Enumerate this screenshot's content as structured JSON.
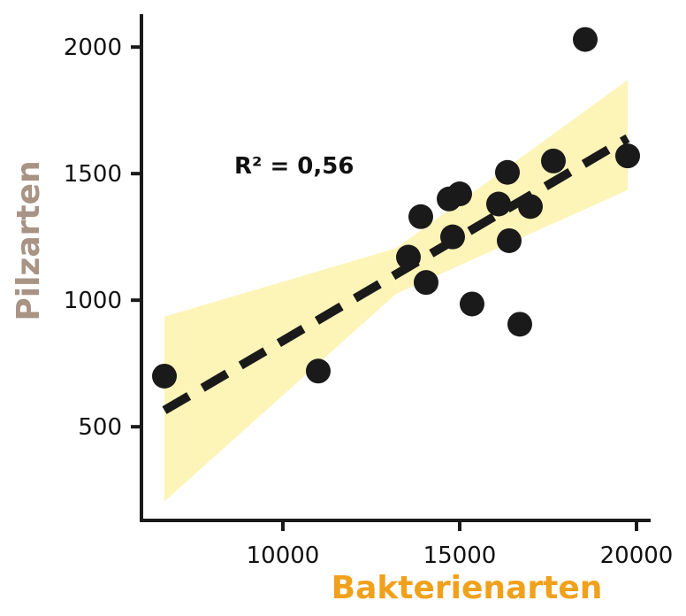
{
  "chart_data": {
    "type": "scatter",
    "title": "",
    "xlabel": "Bakterienarten",
    "ylabel": "Pilzarten",
    "xlim": [
      6000,
      20400
    ],
    "ylim": [
      130,
      2130
    ],
    "x_ticks": [
      10000,
      15000,
      20000
    ],
    "y_ticks": [
      500,
      1000,
      1500,
      2000
    ],
    "x_tick_labels": [
      "10000",
      "15000",
      "20000"
    ],
    "y_tick_labels": [
      "500",
      "1000",
      "1500",
      "2000"
    ],
    "annotation": "R² = 0,56",
    "points": [
      {
        "x": 6650,
        "y": 700
      },
      {
        "x": 11000,
        "y": 720
      },
      {
        "x": 13550,
        "y": 1170
      },
      {
        "x": 13900,
        "y": 1330
      },
      {
        "x": 14050,
        "y": 1070
      },
      {
        "x": 14700,
        "y": 1400
      },
      {
        "x": 14800,
        "y": 1250
      },
      {
        "x": 15000,
        "y": 1420
      },
      {
        "x": 15350,
        "y": 985
      },
      {
        "x": 16100,
        "y": 1380
      },
      {
        "x": 16350,
        "y": 1505
      },
      {
        "x": 16400,
        "y": 1235
      },
      {
        "x": 16700,
        "y": 905
      },
      {
        "x": 17000,
        "y": 1370
      },
      {
        "x": 17650,
        "y": 1550
      },
      {
        "x": 18550,
        "y": 2030
      },
      {
        "x": 19750,
        "y": 1570
      }
    ],
    "trendline": {
      "x": [
        6650,
        19750
      ],
      "y": [
        565,
        1640
      ],
      "style": "dashed"
    },
    "confidence_band": {
      "x": [
        6650,
        13200,
        19750
      ],
      "lower": [
        205,
        1025,
        1435
      ],
      "upper": [
        935,
        1205,
        1870
      ]
    },
    "colors": {
      "points": "#1a1a1a",
      "trendline": "#1a1a1a",
      "band": "#fdf4b8",
      "axis": "#1a1a1a",
      "xlabel": "#f0a11c",
      "ylabel": "#a89384"
    },
    "grid": false,
    "legend": "none"
  }
}
